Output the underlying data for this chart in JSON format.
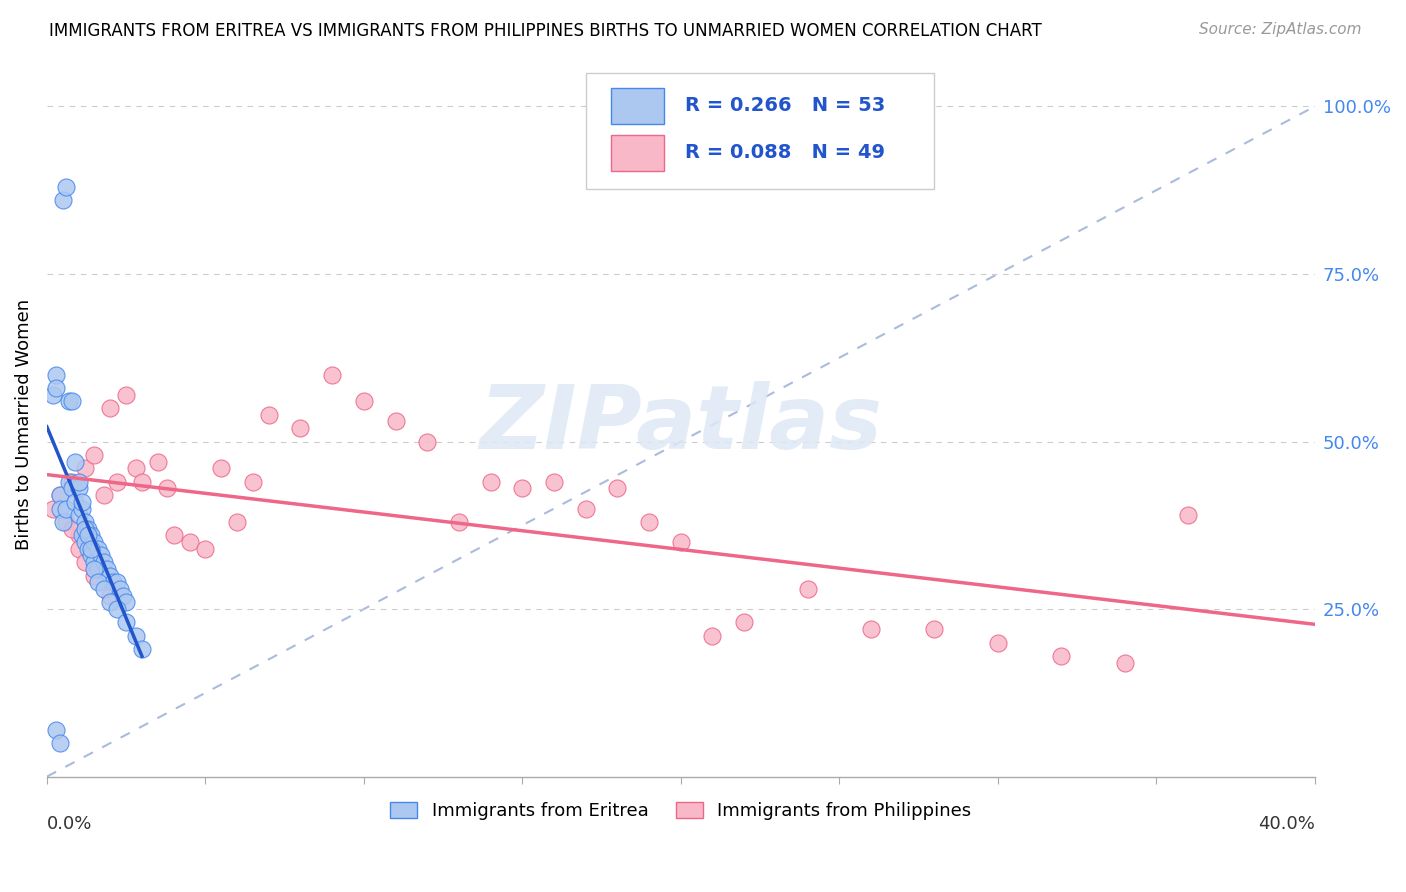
{
  "title": "IMMIGRANTS FROM ERITREA VS IMMIGRANTS FROM PHILIPPINES BIRTHS TO UNMARRIED WOMEN CORRELATION CHART",
  "source": "Source: ZipAtlas.com",
  "ylabel": "Births to Unmarried Women",
  "xmin": 0.0,
  "xmax": 0.4,
  "ymin": 0.0,
  "ymax": 1.05,
  "watermark": "ZIPatlas",
  "eritrea_color": "#adc8f0",
  "eritrea_edge_color": "#4488ee",
  "eritrea_line_color": "#2255cc",
  "philippines_color": "#f8b8c8",
  "philippines_edge_color": "#ee6688",
  "philippines_line_color": "#ee6688",
  "diag_color": "#aabbdd",
  "eritrea_x": [
    0.004,
    0.004,
    0.005,
    0.006,
    0.007,
    0.008,
    0.009,
    0.01,
    0.01,
    0.011,
    0.011,
    0.012,
    0.012,
    0.013,
    0.013,
    0.014,
    0.014,
    0.015,
    0.015,
    0.016,
    0.016,
    0.017,
    0.018,
    0.019,
    0.02,
    0.021,
    0.022,
    0.023,
    0.024,
    0.025,
    0.002,
    0.003,
    0.003,
    0.005,
    0.006,
    0.007,
    0.008,
    0.009,
    0.01,
    0.011,
    0.012,
    0.013,
    0.014,
    0.015,
    0.016,
    0.018,
    0.02,
    0.022,
    0.025,
    0.028,
    0.03,
    0.003,
    0.004
  ],
  "eritrea_y": [
    0.42,
    0.4,
    0.38,
    0.4,
    0.44,
    0.43,
    0.41,
    0.43,
    0.39,
    0.4,
    0.36,
    0.38,
    0.35,
    0.37,
    0.34,
    0.36,
    0.33,
    0.35,
    0.32,
    0.34,
    0.31,
    0.33,
    0.32,
    0.31,
    0.3,
    0.29,
    0.29,
    0.28,
    0.27,
    0.26,
    0.57,
    0.6,
    0.58,
    0.86,
    0.88,
    0.56,
    0.56,
    0.47,
    0.44,
    0.41,
    0.37,
    0.36,
    0.34,
    0.31,
    0.29,
    0.28,
    0.26,
    0.25,
    0.23,
    0.21,
    0.19,
    0.07,
    0.05
  ],
  "philippines_x": [
    0.002,
    0.004,
    0.006,
    0.008,
    0.01,
    0.012,
    0.015,
    0.018,
    0.02,
    0.022,
    0.025,
    0.028,
    0.03,
    0.035,
    0.038,
    0.04,
    0.045,
    0.05,
    0.055,
    0.06,
    0.065,
    0.07,
    0.08,
    0.09,
    0.1,
    0.11,
    0.12,
    0.13,
    0.14,
    0.15,
    0.16,
    0.17,
    0.18,
    0.19,
    0.2,
    0.21,
    0.22,
    0.24,
    0.26,
    0.28,
    0.3,
    0.32,
    0.34,
    0.36,
    0.008,
    0.01,
    0.012,
    0.015,
    0.02
  ],
  "philippines_y": [
    0.4,
    0.42,
    0.38,
    0.44,
    0.36,
    0.46,
    0.48,
    0.42,
    0.55,
    0.44,
    0.57,
    0.46,
    0.44,
    0.47,
    0.43,
    0.36,
    0.35,
    0.34,
    0.46,
    0.38,
    0.44,
    0.54,
    0.52,
    0.6,
    0.56,
    0.53,
    0.5,
    0.38,
    0.44,
    0.43,
    0.44,
    0.4,
    0.43,
    0.38,
    0.35,
    0.21,
    0.23,
    0.28,
    0.22,
    0.22,
    0.2,
    0.18,
    0.17,
    0.39,
    0.37,
    0.34,
    0.32,
    0.3,
    0.27
  ],
  "legend_text_color": "#2255cc",
  "right_tick_color": "#4488ee"
}
